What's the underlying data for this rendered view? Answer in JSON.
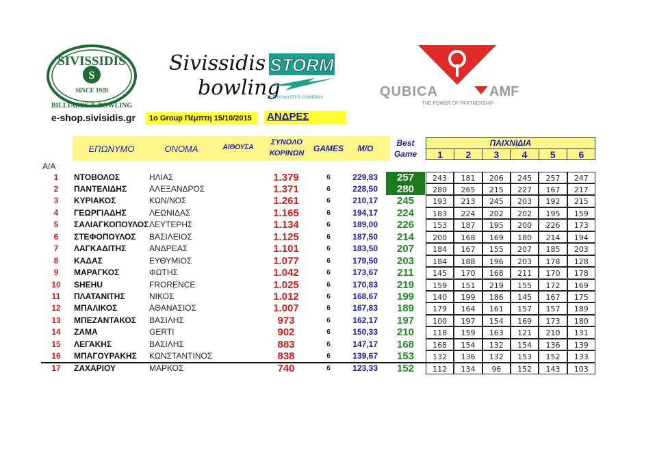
{
  "logos": {
    "sivissidis_billiards": {
      "top": "SIVISSIDIS",
      "since": "SINCE 1928",
      "bottom": "BILLIARDS & BOWLING"
    },
    "storm": {
      "script1": "Sivissidis",
      "script2": "bowling",
      "brand": "STORM",
      "tagline": "THE BOWLER'S COMPANY"
    },
    "qubica": {
      "brand_left": "QUBICA",
      "brand_right": "AMF",
      "tagline": "THE POWER OF PARTNERSHIP"
    }
  },
  "website": "e-shop.sivisidis.gr",
  "group_label": "1o Group Πέμπτη 15/10/2015",
  "category": "ΑΝΔΡΕΣ",
  "colors": {
    "header_yellow": "#fdf68a",
    "label_yellow": "#ffff33",
    "rank_red": "#d01c1c",
    "avg_blue": "#1a1ab0",
    "best_green": "#1f8a1f",
    "best_highlight": "#1e7a1e"
  },
  "headers": {
    "rank": "Α/Α",
    "surname": "ΕΠΩΝΥΜΟ",
    "first_name": "ΟΝΟΜΑ",
    "hall": "ΑΙΘΟΥΣΑ",
    "total_line1": "ΣΥΝΟΛΟ",
    "total_line2": "ΚΟΡΙΝΩΝ",
    "games": "GAMES",
    "average": "M/O",
    "best_line1": "Best",
    "best_line2": "Game",
    "games_group": "ΠΑΙΧΝΙΔΙΑ",
    "game_numbers": [
      "1",
      "2",
      "3",
      "4",
      "5",
      "6"
    ]
  },
  "rows": [
    {
      "rank": "1",
      "surname": "ΝΤΟΒΟΛΟΣ",
      "first_name": "ΗΛΙΑΣ",
      "total": "1.379",
      "games": "6",
      "average": "229,83",
      "best": "257",
      "best_highlight": true,
      "scores": [
        "243",
        "181",
        "206",
        "245",
        "257",
        "247"
      ]
    },
    {
      "rank": "2",
      "surname": "ΠΑΝΤΕΛΙΔΗΣ",
      "first_name": "ΑΛΕΞΑΝΔΡΟΣ",
      "total": "1.371",
      "games": "6",
      "average": "228,50",
      "best": "280",
      "best_highlight": true,
      "scores": [
        "280",
        "265",
        "215",
        "227",
        "167",
        "217"
      ]
    },
    {
      "rank": "3",
      "surname": "ΚΥΡΙΑΚΟΣ",
      "first_name": "ΚΩΝ/ΝΟΣ",
      "total": "1.261",
      "games": "6",
      "average": "210,17",
      "best": "245",
      "scores": [
        "193",
        "213",
        "245",
        "203",
        "192",
        "215"
      ]
    },
    {
      "rank": "4",
      "surname": "ΓΕΩΡΓΙΑΔΗΣ",
      "first_name": "ΛΕΩΝΙΔΑΣ",
      "total": "1.165",
      "games": "6",
      "average": "194,17",
      "best": "224",
      "scores": [
        "183",
        "224",
        "202",
        "202",
        "195",
        "159"
      ]
    },
    {
      "rank": "5",
      "surname": "ΣΑΛΙΑΓΚΟΠΟΥΛΟΣ",
      "first_name": "ΛΕΥΤΕΡΗΣ",
      "total": "1.134",
      "games": "6",
      "average": "189,00",
      "best": "226",
      "scores": [
        "153",
        "187",
        "195",
        "200",
        "226",
        "173"
      ]
    },
    {
      "rank": "6",
      "surname": "ΣΤΕΦΟΠΟΥΛΟΣ",
      "first_name": "ΒΑΣΙΛΕΙΟΣ",
      "total": "1.125",
      "games": "6",
      "average": "187,50",
      "best": "214",
      "scores": [
        "200",
        "168",
        "169",
        "180",
        "214",
        "194"
      ]
    },
    {
      "rank": "7",
      "surname": "ΛΑΓΚΑΔΙΤΗΣ",
      "first_name": "ΑΝΔΡΕΑΣ",
      "total": "1.101",
      "games": "6",
      "average": "183,50",
      "best": "207",
      "scores": [
        "184",
        "167",
        "155",
        "207",
        "185",
        "203"
      ]
    },
    {
      "rank": "8",
      "surname": "ΚΑΔΑΣ",
      "first_name": "ΕΥΘΥΜΙΟΣ",
      "total": "1.077",
      "games": "6",
      "average": "179,50",
      "best": "203",
      "scores": [
        "184",
        "188",
        "196",
        "203",
        "178",
        "128"
      ]
    },
    {
      "rank": "9",
      "surname": "ΜΑΡΑΓΚΟΣ",
      "first_name": "ΦΩΤΗΣ",
      "total": "1.042",
      "games": "6",
      "average": "173,67",
      "best": "211",
      "scores": [
        "145",
        "170",
        "168",
        "211",
        "170",
        "178"
      ]
    },
    {
      "rank": "10",
      "surname": "SHEHU",
      "first_name": "FRORENCE",
      "total": "1.025",
      "games": "6",
      "average": "170,83",
      "best": "219",
      "scores": [
        "159",
        "151",
        "219",
        "155",
        "172",
        "169"
      ]
    },
    {
      "rank": "11",
      "surname": "ΠΛΑΤΑΝΙΤΗΣ",
      "first_name": "ΝΙΚΟΣ",
      "total": "1.012",
      "games": "6",
      "average": "168,67",
      "best": "199",
      "scores": [
        "140",
        "199",
        "186",
        "145",
        "167",
        "175"
      ]
    },
    {
      "rank": "12",
      "surname": "ΜΠΑΛΙΚΟΣ",
      "first_name": "ΑΘΑΝΑΣΙΟΣ",
      "total": "1.007",
      "games": "6",
      "average": "167,83",
      "best": "189",
      "scores": [
        "179",
        "164",
        "161",
        "157",
        "157",
        "189"
      ]
    },
    {
      "rank": "13",
      "surname": "ΜΠΕΖΑΝΤΑΚΟΣ",
      "first_name": "ΒΑΣΙΛΗΣ",
      "total": "973",
      "games": "6",
      "average": "162,17",
      "best": "197",
      "scores": [
        "100",
        "197",
        "154",
        "169",
        "173",
        "180"
      ]
    },
    {
      "rank": "14",
      "surname": "ΖΑΜΑ",
      "first_name": "GERTI",
      "total": "902",
      "games": "6",
      "average": "150,33",
      "best": "210",
      "scores": [
        "118",
        "159",
        "163",
        "121",
        "210",
        "131"
      ]
    },
    {
      "rank": "15",
      "surname": "ΛΕΓΑΚΗΣ",
      "first_name": "ΒΑΣΙΛΗΣ",
      "total": "883",
      "games": "6",
      "average": "147,17",
      "best": "168",
      "scores": [
        "168",
        "154",
        "132",
        "154",
        "136",
        "139"
      ]
    },
    {
      "rank": "16",
      "surname": "ΜΠΑΓΟΥΡΑΚΗΣ",
      "first_name": "ΚΩΝΣΤΑΝΤΙΝΟΣ",
      "total": "838",
      "games": "6",
      "average": "139,67",
      "best": "153",
      "scores": [
        "132",
        "136",
        "132",
        "153",
        "152",
        "133"
      ]
    },
    {
      "rank": "17",
      "surname": "ΖΑΧΑΡΙΟΥ",
      "first_name": "ΜΑΡΚΟΣ",
      "total": "740",
      "games": "6",
      "average": "123,33",
      "best": "152",
      "scores": [
        "112",
        "134",
        "96",
        "152",
        "143",
        "103"
      ]
    }
  ]
}
